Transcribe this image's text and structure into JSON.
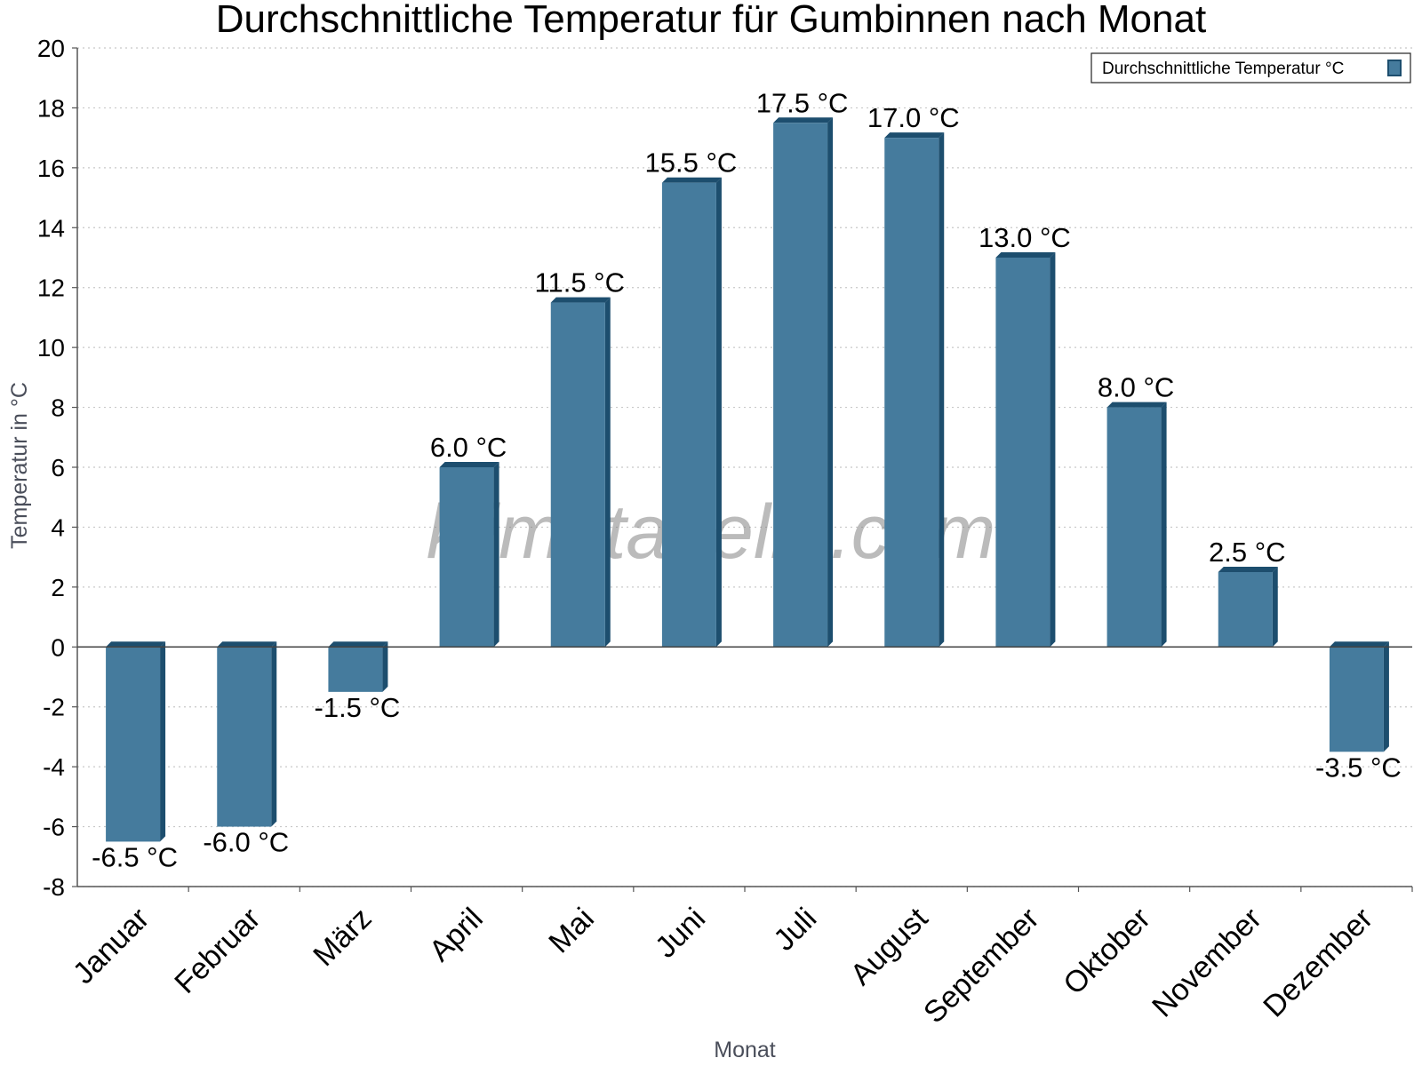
{
  "chart_data": {
    "type": "bar",
    "title": "Durchschnittliche Temperatur für Gumbinnen nach Monat",
    "xlabel": "Monat",
    "ylabel": "Temperatur in °C",
    "ylim": [
      -8,
      20
    ],
    "ytick_step": 2,
    "grid": true,
    "legend_position": "top-right",
    "categories": [
      "Januar",
      "Februar",
      "März",
      "April",
      "Mai",
      "Juni",
      "Juli",
      "August",
      "September",
      "Oktober",
      "November",
      "Dezember"
    ],
    "series": [
      {
        "name": "Durchschnittliche Temperatur °C",
        "values": [
          -6.5,
          -6.0,
          -1.5,
          6.0,
          11.5,
          15.5,
          17.5,
          17.0,
          13.0,
          8.0,
          2.5,
          -3.5
        ],
        "labels": [
          "-6.5 °C",
          "-6.0 °C",
          "-1.5 °C",
          "6.0 °C",
          "11.5 °C",
          "15.5 °C",
          "17.5 °C",
          "17.0 °C",
          "13.0 °C",
          "8.0 °C",
          "2.5 °C",
          "-3.5 °C"
        ]
      }
    ],
    "colors": {
      "bar": "#457b9d",
      "bar_side": "#1d4e6e",
      "grid": "#c8c8c8",
      "axis": "#555555"
    },
    "watermark": "klimatabelle.com"
  }
}
